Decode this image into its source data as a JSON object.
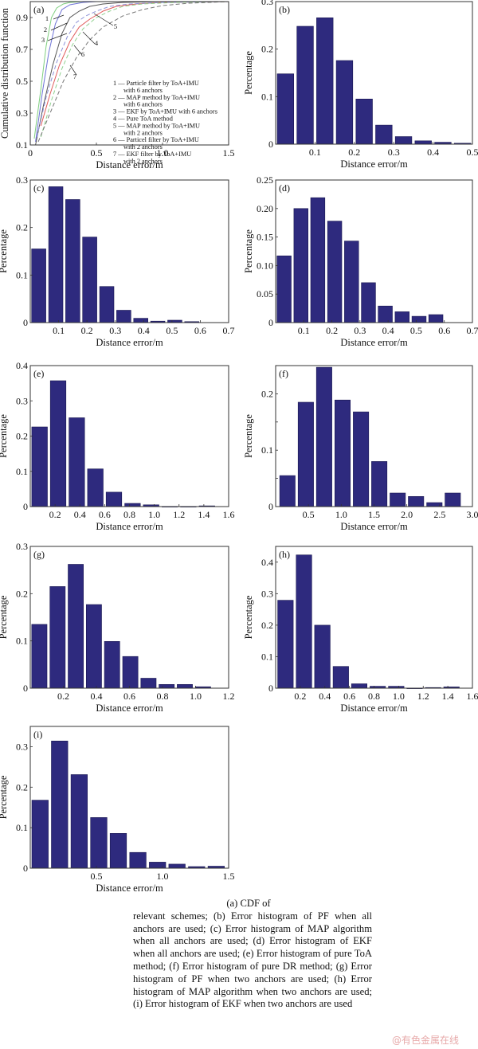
{
  "caption": {
    "head": "(a)  CDF  of",
    "body": "relevant schemes; (b) Error histogram of PF when all anchors are used; (c) Error histogram of MAP algorithm when all anchors are used; (d) Error histogram of EKF when all anchors are used; (e) Error histogram of pure ToA method; (f) Error histogram of pure DR method; (g) Error histogram of PF when two anchors are used; (h) Error histogram of MAP algorithm when two anchors are used; (i) Error histogram of EKF when two anchors are used"
  },
  "watermark": "@有色金属在线",
  "bar_color": "#2e2a7e",
  "chart_data": [
    {
      "id": "a",
      "type": "line",
      "panel_label": "(a)",
      "title": "",
      "xlabel": "Distance error/m",
      "ylabel": "Cumulative distribution function",
      "xlim": [
        0,
        1.5
      ],
      "ylim": [
        0.1,
        1.0
      ],
      "xticks": [
        0,
        0.5,
        1.0,
        1.5
      ],
      "xtick_labels": [
        "0",
        "0.5",
        "1.0",
        "1.5"
      ],
      "yticks": [
        0.1,
        0.3,
        0.5,
        0.7,
        0.9
      ],
      "ytick_labels": [
        "0.1",
        "0.3",
        "0.5",
        "0.7",
        "0.9"
      ],
      "grid": false,
      "legend_position": "bottom-right",
      "series": [
        {
          "key": "1",
          "name": "Particle filter by ToA+IMU with 6 anchors",
          "legend_lines": [
            "1 — Particle filter by ToA+IMU",
            "with 6 anchors"
          ],
          "color": "#7fcf7f",
          "dash": false,
          "x": [
            0.03,
            0.08,
            0.12,
            0.16,
            0.2,
            0.25,
            0.3,
            0.4,
            0.6,
            1.5
          ],
          "y": [
            0.14,
            0.45,
            0.72,
            0.9,
            0.96,
            0.985,
            0.995,
            1.0,
            1.0,
            1.0
          ]
        },
        {
          "key": "2",
          "name": "MAP method by ToA+IMU with 6 anchors",
          "legend_lines": [
            "2 — MAP method by ToA+IMU",
            "with 6 anchors"
          ],
          "color": "#6f74d6",
          "dash": false,
          "x": [
            0.04,
            0.09,
            0.14,
            0.19,
            0.24,
            0.3,
            0.4,
            0.5,
            0.7,
            1.5
          ],
          "y": [
            0.12,
            0.42,
            0.68,
            0.86,
            0.95,
            0.98,
            0.995,
            1.0,
            1.0,
            1.0
          ]
        },
        {
          "key": "3",
          "name": "EKF by ToA+IMU with 6 anchors",
          "legend_lines": [
            "3 — EKF by ToA+IMU with 6 anchors"
          ],
          "color": "#555555",
          "dash": false,
          "x": [
            0.04,
            0.1,
            0.17,
            0.24,
            0.3,
            0.37,
            0.45,
            0.55,
            0.7,
            1.0,
            1.5
          ],
          "y": [
            0.1,
            0.35,
            0.6,
            0.8,
            0.9,
            0.94,
            0.97,
            0.985,
            0.995,
            1.0,
            1.0
          ]
        },
        {
          "key": "4",
          "name": "Pure ToA method",
          "legend_lines": [
            "4 — Pure ToA method"
          ],
          "color": "#e05a5a",
          "dash": false,
          "x": [
            0.08,
            0.15,
            0.22,
            0.3,
            0.37,
            0.45,
            0.55,
            0.65,
            0.8,
            1.0,
            1.5
          ],
          "y": [
            0.22,
            0.42,
            0.6,
            0.75,
            0.84,
            0.89,
            0.94,
            0.97,
            0.985,
            0.995,
            1.0
          ]
        },
        {
          "key": "5",
          "name": "MAP method by ToA+IMU with 2 anchors",
          "legend_lines": [
            "5 — MAP method by ToA+IMU",
            "with 2 anchors"
          ],
          "color": "#8d92d8",
          "dash": true,
          "x": [
            0.05,
            0.12,
            0.2,
            0.28,
            0.35,
            0.42,
            0.5,
            0.6,
            0.75,
            1.0,
            1.5
          ],
          "y": [
            0.15,
            0.4,
            0.62,
            0.78,
            0.87,
            0.91,
            0.94,
            0.97,
            0.985,
            0.995,
            1.0
          ]
        },
        {
          "key": "6",
          "name": "Particel filter by ToA+IMU with 2 anchors",
          "legend_lines": [
            "6 — Particel filter by ToA+IMU",
            "with 2 anchors"
          ],
          "color": "#8fd18f",
          "dash": true,
          "x": [
            0.08,
            0.16,
            0.24,
            0.32,
            0.4,
            0.5,
            0.6,
            0.7,
            0.85,
            1.1,
            1.5
          ],
          "y": [
            0.15,
            0.38,
            0.58,
            0.73,
            0.83,
            0.9,
            0.94,
            0.97,
            0.985,
            0.995,
            1.0
          ]
        },
        {
          "key": "7",
          "name": "EKF filter by ToA+IMU with 2 anchors",
          "legend_lines": [
            "7 — EKF filter by ToA+IMU",
            "with 2 anchors"
          ],
          "color": "#777777",
          "dash": true,
          "x": [
            0.06,
            0.15,
            0.25,
            0.35,
            0.45,
            0.55,
            0.7,
            0.85,
            1.0,
            1.2,
            1.5
          ],
          "y": [
            0.12,
            0.3,
            0.5,
            0.65,
            0.76,
            0.84,
            0.91,
            0.95,
            0.975,
            0.99,
            1.0
          ]
        }
      ]
    },
    {
      "id": "b",
      "type": "bar",
      "panel_label": "(b)",
      "title": "",
      "xlabel": "Distance error/m",
      "ylabel": "Percentage",
      "xlim": [
        0,
        0.5
      ],
      "ylim": [
        0,
        0.3
      ],
      "xticks": [
        0.1,
        0.2,
        0.3,
        0.4,
        0.5
      ],
      "xtick_labels": [
        "0.1",
        "0.2",
        "0.3",
        "0.4",
        "0.5"
      ],
      "yticks": [
        0,
        0.1,
        0.2,
        0.3
      ],
      "ytick_labels": [
        "0",
        "0.1",
        "0.2",
        "0.3"
      ],
      "bin_width": 0.05,
      "x": [
        0.025,
        0.075,
        0.125,
        0.175,
        0.225,
        0.275,
        0.325,
        0.375,
        0.425,
        0.475
      ],
      "values": [
        0.148,
        0.248,
        0.266,
        0.176,
        0.095,
        0.04,
        0.016,
        0.007,
        0.004,
        0.002
      ]
    },
    {
      "id": "c",
      "type": "bar",
      "panel_label": "(c)",
      "title": "",
      "xlabel": "Distance error/m",
      "ylabel": "Percentage",
      "xlim": [
        0,
        0.7
      ],
      "ylim": [
        0,
        0.3
      ],
      "xticks": [
        0.1,
        0.2,
        0.3,
        0.4,
        0.5,
        0.6,
        0.7
      ],
      "xtick_labels": [
        "0.1",
        "0.2",
        "0.3",
        "0.4",
        "0.5",
        "0.6",
        "0.7"
      ],
      "yticks": [
        0,
        0.1,
        0.2,
        0.3
      ],
      "ytick_labels": [
        "0",
        "0.1",
        "0.2",
        "0.3"
      ],
      "bin_width": 0.06,
      "x": [
        0.03,
        0.09,
        0.15,
        0.21,
        0.27,
        0.33,
        0.39,
        0.45,
        0.51,
        0.57
      ],
      "values": [
        0.155,
        0.286,
        0.259,
        0.18,
        0.076,
        0.026,
        0.009,
        0.003,
        0.005,
        0.002
      ]
    },
    {
      "id": "d",
      "type": "bar",
      "panel_label": "(d)",
      "title": "",
      "xlabel": "Distance error/m",
      "ylabel": "Percentage",
      "xlim": [
        0,
        0.7
      ],
      "ylim": [
        0,
        0.25
      ],
      "xticks": [
        0.1,
        0.2,
        0.3,
        0.4,
        0.5,
        0.6,
        0.7
      ],
      "xtick_labels": [
        "0.1",
        "0.2",
        "0.3",
        "0.4",
        "0.5",
        "0.6",
        "0.7"
      ],
      "yticks": [
        0,
        0.05,
        0.1,
        0.15,
        0.2,
        0.25
      ],
      "ytick_labels": [
        "0",
        "0.05",
        "0.10",
        "0.15",
        "0.20",
        "0.25"
      ],
      "bin_width": 0.06,
      "x": [
        0.03,
        0.09,
        0.15,
        0.21,
        0.27,
        0.33,
        0.39,
        0.45,
        0.51,
        0.57
      ],
      "values": [
        0.117,
        0.2,
        0.219,
        0.178,
        0.143,
        0.07,
        0.029,
        0.019,
        0.011,
        0.014
      ]
    },
    {
      "id": "e",
      "type": "bar",
      "panel_label": "(e)",
      "title": "",
      "xlabel": "Distance error/m",
      "ylabel": "Percentage",
      "xlim": [
        0,
        1.6
      ],
      "ylim": [
        0,
        0.4
      ],
      "xticks": [
        0.2,
        0.4,
        0.6,
        0.8,
        1.0,
        1.2,
        1.4,
        1.6
      ],
      "xtick_labels": [
        "0.2",
        "0.4",
        "0.6",
        "0.8",
        "1.0",
        "1.2",
        "1.4",
        "1.6"
      ],
      "yticks": [
        0,
        0.1,
        0.2,
        0.3,
        0.4
      ],
      "ytick_labels": [
        "0",
        "0.1",
        "0.2",
        "0.3",
        "0.4"
      ],
      "bin_width": 0.15,
      "x": [
        0.075,
        0.225,
        0.375,
        0.525,
        0.675,
        0.825,
        0.975,
        1.125,
        1.275,
        1.425
      ],
      "values": [
        0.226,
        0.357,
        0.252,
        0.107,
        0.041,
        0.009,
        0.005,
        0.0,
        0.0,
        0.002
      ]
    },
    {
      "id": "f",
      "type": "bar",
      "panel_label": "(f)",
      "title": "",
      "xlabel": "Distance error/m",
      "ylabel": "Percentage",
      "xlim": [
        0,
        3.0
      ],
      "ylim": [
        0,
        0.25
      ],
      "xticks": [
        0.5,
        1.0,
        1.5,
        2.0,
        2.5,
        3.0
      ],
      "xtick_labels": [
        "0.5",
        "1.0",
        "1.5",
        "2.0",
        "2.5",
        "3.0"
      ],
      "yticks": [
        0,
        0.05,
        0.1,
        0.15,
        0.2
      ],
      "ytick_labels": [
        "0",
        "",
        "0.1",
        "",
        "0.2"
      ],
      "bin_width": 0.28,
      "x": [
        0.18,
        0.46,
        0.74,
        1.02,
        1.3,
        1.58,
        1.86,
        2.14,
        2.42,
        2.7
      ],
      "values": [
        0.055,
        0.185,
        0.247,
        0.189,
        0.168,
        0.08,
        0.024,
        0.018,
        0.007,
        0.024
      ]
    },
    {
      "id": "g",
      "type": "bar",
      "panel_label": "(g)",
      "title": "",
      "xlabel": "Distance error/m",
      "ylabel": "Percentage",
      "xlim": [
        0,
        1.2
      ],
      "ylim": [
        0,
        0.3
      ],
      "xticks": [
        0.2,
        0.4,
        0.6,
        0.8,
        1.0,
        1.2
      ],
      "xtick_labels": [
        "0.2",
        "0.4",
        "0.6",
        "0.8",
        "1.0",
        "1.2"
      ],
      "yticks": [
        0,
        0.1,
        0.2,
        0.3
      ],
      "ytick_labels": [
        "0",
        "0.1",
        "0.2",
        "0.3"
      ],
      "bin_width": 0.11,
      "x": [
        0.055,
        0.165,
        0.275,
        0.385,
        0.495,
        0.605,
        0.715,
        0.825,
        0.935,
        1.045
      ],
      "values": [
        0.135,
        0.215,
        0.262,
        0.177,
        0.099,
        0.067,
        0.021,
        0.008,
        0.008,
        0.003
      ]
    },
    {
      "id": "h",
      "type": "bar",
      "panel_label": "(h)",
      "title": "",
      "xlabel": "Distance error/m",
      "ylabel": "Percentage",
      "xlim": [
        0,
        1.6
      ],
      "ylim": [
        0,
        0.45
      ],
      "xticks": [
        0.2,
        0.4,
        0.6,
        0.8,
        1.0,
        1.2,
        1.4,
        1.6
      ],
      "xtick_labels": [
        "0.2",
        "0.4",
        "0.6",
        "0.8",
        "1.0",
        "1.2",
        "1.4",
        "1.6"
      ],
      "yticks": [
        0,
        0.1,
        0.2,
        0.3,
        0.4
      ],
      "ytick_labels": [
        "0",
        "0.1",
        "0.2",
        "0.3",
        "0.4"
      ],
      "bin_width": 0.15,
      "x": [
        0.08,
        0.23,
        0.38,
        0.53,
        0.68,
        0.83,
        0.98,
        1.13,
        1.28,
        1.43
      ],
      "values": [
        0.279,
        0.423,
        0.2,
        0.069,
        0.014,
        0.006,
        0.006,
        0.0,
        0.002,
        0.004
      ]
    },
    {
      "id": "i",
      "type": "bar",
      "panel_label": "(i)",
      "title": "",
      "xlabel": "Distance error/m",
      "ylabel": "Percentage",
      "xlim": [
        0,
        1.5
      ],
      "ylim": [
        0,
        0.35
      ],
      "xticks": [
        0.5,
        1.0,
        1.5
      ],
      "xtick_labels": [
        "0.5",
        "1.0",
        "1.5"
      ],
      "yticks": [
        0,
        0.1,
        0.2,
        0.3
      ],
      "ytick_labels": [
        "0",
        "0.1",
        "0.2",
        "0.3"
      ],
      "bin_width": 0.148,
      "x": [
        0.074,
        0.222,
        0.37,
        0.518,
        0.666,
        0.814,
        0.962,
        1.11,
        1.258,
        1.406
      ],
      "values": [
        0.168,
        0.314,
        0.231,
        0.125,
        0.086,
        0.039,
        0.015,
        0.01,
        0.004,
        0.005
      ]
    }
  ]
}
